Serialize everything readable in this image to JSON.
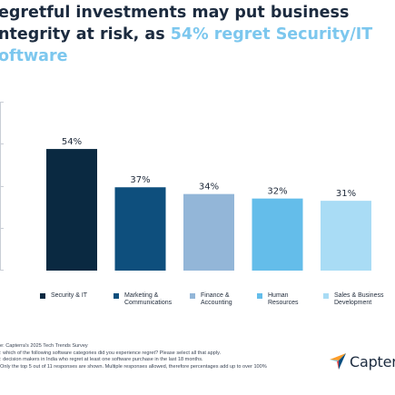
{
  "title": {
    "line1": "egretful investments may put business",
    "line2_prefix": "ntegrity at risk, as ",
    "line2_accent": "54% regret Security/IT",
    "line3_accent": "oftware"
  },
  "colors": {
    "title": "#1c2b3f",
    "accent": "#7cc7ee"
  },
  "chart_data": {
    "type": "bar",
    "categories": [
      "Security & IT",
      "Marketing & Communications",
      "Finance & Accounting",
      "Human Resources",
      "Sales & Business Development"
    ],
    "values": [
      54,
      37,
      34,
      32,
      31
    ],
    "value_labels": [
      "54%",
      "37%",
      "34%",
      "32%",
      "31%"
    ],
    "colors": [
      "#0a2941",
      "#0e4f7d",
      "#93b6d8",
      "#64bdea",
      "#a9dcf5"
    ],
    "ylim": [
      0,
      75
    ],
    "grid": false,
    "legend_position": "bottom"
  },
  "legend": [
    {
      "label": "Security & IT"
    },
    {
      "label": "Marketing &\nCommunications"
    },
    {
      "label": "Finance &\nAccounting"
    },
    {
      "label": "Human\nResources"
    },
    {
      "label": "Sales & Business\nDevelopment"
    }
  ],
  "footnotes": [
    "e: Capterra's 2025 Tech Trends Survey",
    ": which of the following software categories did you experience regret? Please select all that apply.",
    ": decision makers in India who regret at least one software purchase in the last 18 months.",
    "Only the top 5 out of 11 responses are shown. Multiple responses allowed, therefore percentages add up to over 100%"
  ],
  "logo": {
    "text": "Capterra",
    "icon": "capterra-arrow-icon"
  }
}
